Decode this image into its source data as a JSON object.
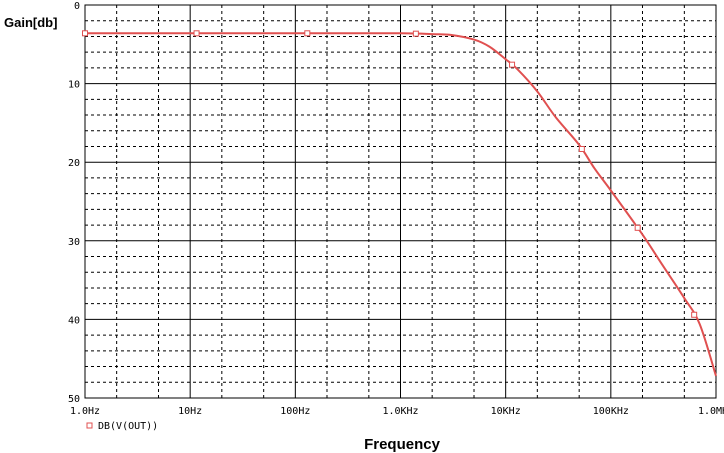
{
  "chart_data": {
    "type": "line",
    "ylabel": "Gain[db]",
    "xlabel": "Frequency",
    "x_scale": "log",
    "y_direction": "inverted",
    "xlim": [
      "1.0Hz",
      "1.0MHz"
    ],
    "ylim": [
      0,
      50
    ],
    "x_ticks": [
      "1.0Hz",
      "10Hz",
      "100Hz",
      "1.0KHz",
      "10KHz",
      "100KHz",
      "1.0MHz"
    ],
    "y_ticks": [
      "0",
      "10",
      "20",
      "30",
      "40",
      "50"
    ],
    "grid": true,
    "legend_position": "bottom-left",
    "series": [
      {
        "name": "DB(V(OUT))",
        "color": "#e05050",
        "marker": "square-hollow",
        "x": [
          "1.0Hz",
          "10Hz",
          "100Hz",
          "1.0KHz",
          "2.0KHz",
          "3.0KHz",
          "5.0KHz",
          "7.0KHz",
          "10KHz",
          "13KHz",
          "20KHz",
          "30KHz",
          "50KHz",
          "70KHz",
          "100KHz",
          "200KHz",
          "300KHz",
          "500KHz",
          "700KHz",
          "1.0MHz"
        ],
        "y": [
          3.6,
          3.6,
          3.6,
          3.6,
          3.7,
          3.8,
          4.4,
          5.3,
          6.9,
          8.2,
          11.0,
          14.3,
          17.8,
          20.8,
          23.6,
          29.2,
          32.8,
          37.3,
          40.6,
          47.2
        ]
      }
    ]
  }
}
